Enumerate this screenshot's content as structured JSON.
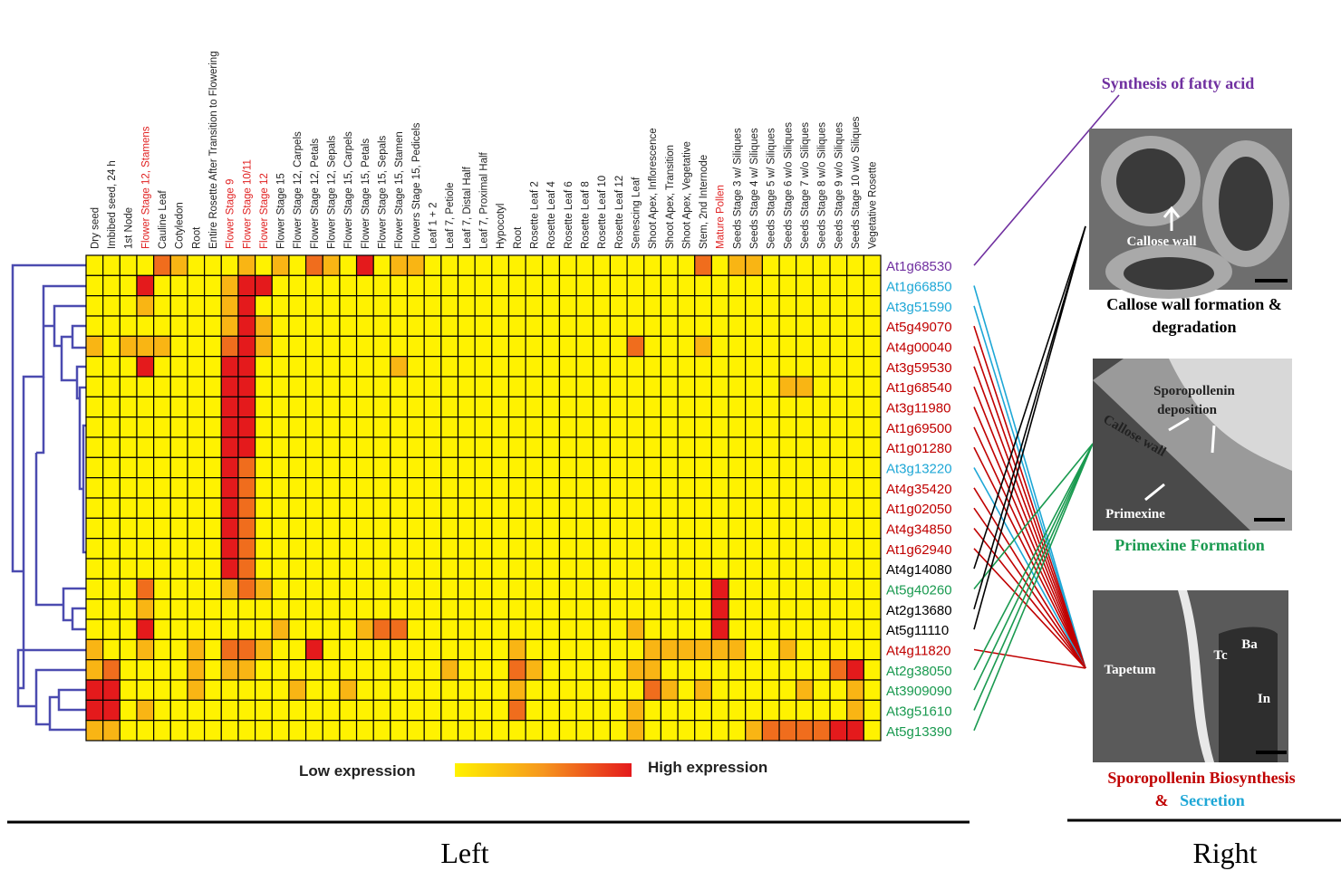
{
  "chart_data": {
    "type": "heatmap",
    "columns": [
      "Dry seed",
      "Imbibed seed, 24 h",
      "1st Node",
      "Flower Stage 12, Stamens",
      "Cauline Leaf",
      "Cotyledon",
      "Root",
      "Entire Rosette After Transition to Flowering",
      "Flower Stage 9",
      "Flower Stage 10/11",
      "Flower Stage 12",
      "Flower Stage 15",
      "Flower Stage 12, Carpels",
      "Flower Stage 12, Petals",
      "Flower Stage 12, Sepals",
      "Flower Stage 15, Carpels",
      "Flower Stage 15, Petals",
      "Flower Stage 15, Sepals",
      "Flower Stage 15, Stamen",
      "Flowers Stage 15, Pedicels",
      "Leaf 1 + 2",
      "Leaf 7, Petiole",
      "Leaf 7, Distal Half",
      "Leaf 7, Proximal Half",
      "Hypocotyl",
      "Root",
      "Rosette Leaf 2",
      "Rosette Leaf 4",
      "Rosette Leaf 6",
      "Rosette Leaf 8",
      "Rosette Leaf 10",
      "Rosette Leaf 12",
      "Senescing Leaf",
      "Shoot Apex, Inflorescence",
      "Shoot Apex, Transition",
      "Shoot Apex, Vegetative",
      "Stem, 2nd Internode",
      "Mature Pollen",
      "Seeds Stage 3 w/ Siliques",
      "Seeds Stage 4 w/ Siliques",
      "Seeds Stage 5 w/ Siliques",
      "Seeds Stage 6 w/o Siliques",
      "Seeds Stage 7 w/o Siliques",
      "Seeds Stage 8 w/o Siliques",
      "Seeds Stage 9 w/o Siliques",
      "Seeds Stage 10 w/o Siliques",
      "Vegetative Rosette"
    ],
    "column_label_colors": [
      "#222",
      "#222",
      "#222",
      "#e02020",
      "#222",
      "#222",
      "#222",
      "#222",
      "#e02020",
      "#e02020",
      "#e02020",
      "#222",
      "#222",
      "#222",
      "#222",
      "#222",
      "#222",
      "#222",
      "#222",
      "#222",
      "#222",
      "#222",
      "#222",
      "#222",
      "#222",
      "#222",
      "#222",
      "#222",
      "#222",
      "#222",
      "#222",
      "#222",
      "#222",
      "#222",
      "#222",
      "#222",
      "#222",
      "#e02020",
      "#222",
      "#222",
      "#222",
      "#222",
      "#222",
      "#222",
      "#222",
      "#222",
      "#222"
    ],
    "rows": [
      "At1g68530",
      "At1g66850",
      "At3g51590",
      "At5g49070",
      "At4g00040",
      "At3g59530",
      "At1g68540",
      "At3g11980",
      "At1g69500",
      "At1g01280",
      "At3g13220",
      "At4g35420",
      "At1g02050",
      "At4g34850",
      "At1g62940",
      "At4g14080",
      "At5g40260",
      "At2g13680",
      "At5g11110",
      "At4g11820",
      "At2g38050",
      "At3909090",
      "At3g51610",
      "At5g13390"
    ],
    "row_label_colors": [
      "#7030a0",
      "#1ea7d6",
      "#1ea7d6",
      "#c00000",
      "#c00000",
      "#c00000",
      "#c00000",
      "#c00000",
      "#c00000",
      "#c00000",
      "#1ea7d6",
      "#c00000",
      "#c00000",
      "#c00000",
      "#c00000",
      "#000000",
      "#1a9a50",
      "#000000",
      "#000000",
      "#c00000",
      "#1a9a50",
      "#1a9a50",
      "#1a9a50",
      "#1a9a50"
    ],
    "values": [
      [
        0,
        0,
        0,
        0,
        2,
        1,
        0,
        0,
        0,
        1,
        0,
        1,
        0,
        2,
        1,
        0,
        3,
        0,
        1,
        1,
        0,
        0,
        0,
        0,
        0,
        0,
        0,
        0,
        0,
        0,
        0,
        0,
        0,
        0,
        0,
        0,
        2,
        0,
        1,
        1,
        0,
        0,
        0,
        0,
        0,
        0,
        0
      ],
      [
        0,
        0,
        0,
        3,
        0,
        0,
        0,
        0,
        1,
        3,
        3,
        0,
        0,
        0,
        0,
        0,
        0,
        0,
        0,
        0,
        0,
        0,
        0,
        0,
        0,
        0,
        0,
        0,
        0,
        0,
        0,
        0,
        0,
        0,
        0,
        0,
        0,
        0,
        0,
        0,
        0,
        0,
        0,
        0,
        0,
        0,
        0
      ],
      [
        0,
        0,
        0,
        1,
        0,
        0,
        0,
        0,
        1,
        3,
        0,
        0,
        0,
        0,
        0,
        0,
        0,
        0,
        0,
        0,
        0,
        0,
        0,
        0,
        0,
        0,
        0,
        0,
        0,
        0,
        0,
        0,
        0,
        0,
        0,
        0,
        0,
        0,
        0,
        0,
        0,
        0,
        0,
        0,
        0,
        0,
        0
      ],
      [
        0,
        0,
        0,
        0,
        0,
        0,
        0,
        0,
        1,
        3,
        1,
        0,
        0,
        0,
        0,
        0,
        0,
        0,
        0,
        0,
        0,
        0,
        0,
        0,
        0,
        0,
        0,
        0,
        0,
        0,
        0,
        0,
        0,
        0,
        0,
        0,
        0,
        0,
        0,
        0,
        0,
        0,
        0,
        0,
        0,
        0,
        0
      ],
      [
        1,
        0,
        1,
        1,
        1,
        0,
        0,
        0,
        2,
        3,
        1,
        0,
        0,
        0,
        0,
        0,
        0,
        0,
        0,
        0,
        0,
        0,
        0,
        0,
        0,
        0,
        0,
        0,
        0,
        0,
        0,
        0,
        2,
        0,
        0,
        0,
        1,
        0,
        0,
        0,
        0,
        0,
        0,
        0,
        0,
        0,
        0
      ],
      [
        0,
        0,
        0,
        3,
        0,
        0,
        0,
        0,
        3,
        3,
        0,
        0,
        0,
        0,
        0,
        0,
        0,
        0,
        1,
        0,
        0,
        0,
        0,
        0,
        0,
        0,
        0,
        0,
        0,
        0,
        0,
        0,
        0,
        0,
        0,
        0,
        0,
        0,
        0,
        0,
        0,
        0,
        0,
        0,
        0,
        0,
        0
      ],
      [
        0,
        0,
        0,
        0,
        0,
        0,
        0,
        0,
        3,
        3,
        0,
        0,
        0,
        0,
        0,
        0,
        0,
        0,
        0,
        0,
        0,
        0,
        0,
        0,
        0,
        0,
        0,
        0,
        0,
        0,
        0,
        0,
        0,
        0,
        0,
        0,
        0,
        0,
        0,
        0,
        0,
        1,
        1,
        0,
        0,
        0,
        0
      ],
      [
        0,
        0,
        0,
        0,
        0,
        0,
        0,
        0,
        3,
        3,
        0,
        0,
        0,
        0,
        0,
        0,
        0,
        0,
        0,
        0,
        0,
        0,
        0,
        0,
        0,
        0,
        0,
        0,
        0,
        0,
        0,
        0,
        0,
        0,
        0,
        0,
        0,
        0,
        0,
        0,
        0,
        0,
        0,
        0,
        0,
        0,
        0
      ],
      [
        0,
        0,
        0,
        0,
        0,
        0,
        0,
        0,
        3,
        3,
        0,
        0,
        0,
        0,
        0,
        0,
        0,
        0,
        0,
        0,
        0,
        0,
        0,
        0,
        0,
        0,
        0,
        0,
        0,
        0,
        0,
        0,
        0,
        0,
        0,
        0,
        0,
        0,
        0,
        0,
        0,
        0,
        0,
        0,
        0,
        0,
        0
      ],
      [
        0,
        0,
        0,
        0,
        0,
        0,
        0,
        0,
        3,
        3,
        0,
        0,
        0,
        0,
        0,
        0,
        0,
        0,
        0,
        0,
        0,
        0,
        0,
        0,
        0,
        0,
        0,
        0,
        0,
        0,
        0,
        0,
        0,
        0,
        0,
        0,
        0,
        0,
        0,
        0,
        0,
        0,
        0,
        0,
        0,
        0,
        0
      ],
      [
        0,
        0,
        0,
        0,
        0,
        0,
        0,
        0,
        3,
        2,
        0,
        0,
        0,
        0,
        0,
        0,
        0,
        0,
        0,
        0,
        0,
        0,
        0,
        0,
        0,
        0,
        0,
        0,
        0,
        0,
        0,
        0,
        0,
        0,
        0,
        0,
        0,
        0,
        0,
        0,
        0,
        0,
        0,
        0,
        0,
        0,
        0
      ],
      [
        0,
        0,
        0,
        0,
        0,
        0,
        0,
        0,
        3,
        2,
        0,
        0,
        0,
        0,
        0,
        0,
        0,
        0,
        0,
        0,
        0,
        0,
        0,
        0,
        0,
        0,
        0,
        0,
        0,
        0,
        0,
        0,
        0,
        0,
        0,
        0,
        0,
        0,
        0,
        0,
        0,
        0,
        0,
        0,
        0,
        0,
        0
      ],
      [
        0,
        0,
        0,
        0,
        0,
        0,
        0,
        0,
        3,
        2,
        0,
        0,
        0,
        0,
        0,
        0,
        0,
        0,
        0,
        0,
        0,
        0,
        0,
        0,
        0,
        0,
        0,
        0,
        0,
        0,
        0,
        0,
        0,
        0,
        0,
        0,
        0,
        0,
        0,
        0,
        0,
        0,
        0,
        0,
        0,
        0,
        0
      ],
      [
        0,
        0,
        0,
        0,
        0,
        0,
        0,
        0,
        3,
        2,
        0,
        0,
        0,
        0,
        0,
        0,
        0,
        0,
        0,
        0,
        0,
        0,
        0,
        0,
        0,
        0,
        0,
        0,
        0,
        0,
        0,
        0,
        0,
        0,
        0,
        0,
        0,
        0,
        0,
        0,
        0,
        0,
        0,
        0,
        0,
        0,
        0
      ],
      [
        0,
        0,
        0,
        0,
        0,
        0,
        0,
        0,
        3,
        2,
        0,
        0,
        0,
        0,
        0,
        0,
        0,
        0,
        0,
        0,
        0,
        0,
        0,
        0,
        0,
        0,
        0,
        0,
        0,
        0,
        0,
        0,
        0,
        0,
        0,
        0,
        0,
        0,
        0,
        0,
        0,
        0,
        0,
        0,
        0,
        0,
        0
      ],
      [
        0,
        0,
        0,
        0,
        0,
        0,
        0,
        0,
        3,
        2,
        0,
        0,
        0,
        0,
        0,
        0,
        0,
        0,
        0,
        0,
        0,
        0,
        0,
        0,
        0,
        0,
        0,
        0,
        0,
        0,
        0,
        0,
        0,
        0,
        0,
        0,
        0,
        0,
        0,
        0,
        0,
        0,
        0,
        0,
        0,
        0,
        0
      ],
      [
        0,
        0,
        0,
        2,
        0,
        0,
        0,
        0,
        1,
        2,
        1,
        0,
        0,
        0,
        0,
        0,
        0,
        0,
        0,
        0,
        0,
        0,
        0,
        0,
        0,
        0,
        0,
        0,
        0,
        0,
        0,
        0,
        0,
        0,
        0,
        0,
        0,
        3,
        0,
        0,
        0,
        0,
        0,
        0,
        0,
        0,
        0
      ],
      [
        0,
        0,
        0,
        1,
        0,
        0,
        0,
        0,
        0,
        0,
        0,
        0,
        0,
        0,
        0,
        0,
        0,
        0,
        0,
        0,
        0,
        0,
        0,
        0,
        0,
        0,
        0,
        0,
        0,
        0,
        0,
        0,
        0,
        0,
        0,
        0,
        0,
        3,
        0,
        0,
        0,
        0,
        0,
        0,
        0,
        0,
        0
      ],
      [
        0,
        0,
        0,
        3,
        0,
        0,
        0,
        0,
        0,
        0,
        0,
        1,
        0,
        0,
        0,
        0,
        1,
        2,
        2,
        0,
        0,
        0,
        0,
        0,
        0,
        0,
        0,
        0,
        0,
        0,
        0,
        0,
        1,
        0,
        0,
        0,
        0,
        3,
        0,
        0,
        0,
        0,
        0,
        0,
        0,
        0,
        0
      ],
      [
        1,
        0,
        0,
        1,
        0,
        0,
        1,
        0,
        2,
        2,
        1,
        0,
        0,
        3,
        0,
        0,
        0,
        0,
        0,
        0,
        0,
        0,
        0,
        0,
        0,
        1,
        0,
        0,
        0,
        0,
        0,
        0,
        0,
        1,
        1,
        1,
        1,
        1,
        1,
        0,
        0,
        1,
        0,
        0,
        0,
        0,
        0
      ],
      [
        1,
        2,
        0,
        0,
        0,
        0,
        1,
        0,
        1,
        1,
        0,
        0,
        0,
        0,
        0,
        0,
        0,
        0,
        0,
        0,
        0,
        1,
        0,
        0,
        0,
        2,
        1,
        0,
        0,
        0,
        0,
        0,
        1,
        1,
        0,
        0,
        0,
        0,
        0,
        0,
        0,
        0,
        0,
        0,
        2,
        3,
        0
      ],
      [
        3,
        3,
        0,
        0,
        0,
        0,
        1,
        0,
        0,
        0,
        0,
        0,
        1,
        0,
        0,
        1,
        0,
        0,
        0,
        0,
        0,
        0,
        0,
        0,
        0,
        1,
        0,
        0,
        0,
        0,
        0,
        0,
        0,
        2,
        1,
        0,
        1,
        0,
        0,
        0,
        0,
        0,
        1,
        0,
        0,
        1,
        0
      ],
      [
        3,
        3,
        0,
        1,
        0,
        0,
        0,
        0,
        0,
        0,
        0,
        0,
        0,
        0,
        0,
        0,
        0,
        0,
        0,
        0,
        0,
        0,
        0,
        0,
        0,
        2,
        0,
        0,
        0,
        0,
        0,
        0,
        1,
        0,
        0,
        0,
        0,
        0,
        0,
        0,
        0,
        0,
        0,
        0,
        0,
        1,
        0
      ],
      [
        1,
        1,
        0,
        0,
        0,
        0,
        0,
        0,
        0,
        0,
        0,
        0,
        0,
        0,
        0,
        0,
        0,
        0,
        0,
        0,
        0,
        0,
        0,
        0,
        0,
        0,
        0,
        0,
        0,
        0,
        0,
        0,
        1,
        0,
        0,
        0,
        0,
        0,
        0,
        1,
        2,
        2,
        2,
        2,
        3,
        3,
        0
      ]
    ],
    "vlim": [
      0,
      3
    ],
    "color_scale": [
      "#fff200",
      "#f6961e",
      "#e41a1c"
    ],
    "legend": {
      "low": "Low expression",
      "high": "High expression"
    }
  },
  "right_panel": {
    "top": "Synthesis of fatty acid",
    "callose": {
      "labels": [
        "Callose wall"
      ],
      "caption": [
        "Callose wall formation &",
        "degradation"
      ]
    },
    "primexine": {
      "labels": [
        "Sporopollenin",
        "deposition",
        "Callose wall",
        "Primexine"
      ],
      "caption": "Primexine Formation"
    },
    "sporopollenin": {
      "labels": [
        "Tapetum",
        "Tc",
        "Ba",
        "In"
      ],
      "caption": [
        "Sporopollenin Biosynthesis",
        "&",
        "Secretion"
      ]
    }
  },
  "footer": {
    "left": "Left",
    "right": "Right"
  }
}
